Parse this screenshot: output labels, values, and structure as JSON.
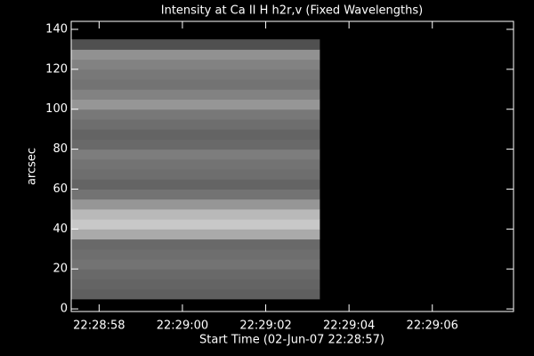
{
  "chart_data": {
    "type": "heatmap",
    "title": "Intensity at Ca II H h2r,v (Fixed Wavelengths)",
    "xlabel": "Start Time (02-Jun-07 22:28:57)",
    "ylabel": "arcsec",
    "xlim": [
      0.33,
      10.95
    ],
    "ylim": [
      -1.3,
      144
    ],
    "xticks": [
      {
        "value": 1,
        "label": "22:28:58"
      },
      {
        "value": 3,
        "label": "22:29:00"
      },
      {
        "value": 5,
        "label": "22:29:02"
      },
      {
        "value": 7,
        "label": "22:29:04"
      },
      {
        "value": 9,
        "label": "22:29:06"
      }
    ],
    "yticks": [
      0,
      20,
      40,
      60,
      80,
      100,
      120,
      140
    ],
    "x_edges": [
      0.33,
      6.3
    ],
    "y_bins": [
      5,
      10,
      15,
      20,
      25,
      30,
      35,
      40,
      45,
      50,
      55,
      60,
      65,
      70,
      75,
      80,
      85,
      90,
      95,
      100,
      105,
      110,
      115,
      120,
      125,
      130,
      135
    ],
    "intensity": [
      95,
      100,
      105,
      115,
      110,
      105,
      170,
      200,
      185,
      150,
      115,
      100,
      110,
      115,
      125,
      105,
      100,
      110,
      120,
      150,
      130,
      115,
      120,
      130,
      145,
      80
    ]
  }
}
